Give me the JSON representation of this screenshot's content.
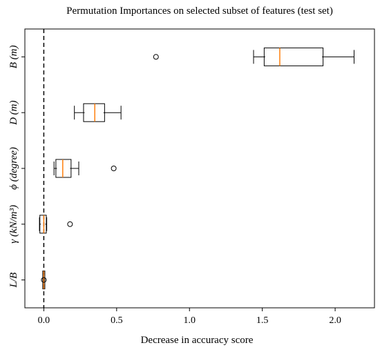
{
  "chart_data": {
    "type": "boxplot",
    "orientation": "horizontal",
    "title": "Permutation Importances on selected subset of features (test set)",
    "xlabel": "Decrease in accuracy score",
    "ylabel": "",
    "xlim": [
      -0.13,
      2.27
    ],
    "xticks": [
      0.0,
      0.5,
      1.0,
      1.5,
      2.0
    ],
    "xtick_labels": [
      "0.0",
      "0.5",
      "1.0",
      "1.5",
      "2.0"
    ],
    "reference_line": {
      "x": 0.0,
      "style": "dashed"
    },
    "grid": false,
    "colors": {
      "box": "#000000",
      "median": "#ff7f0e",
      "reference": "#000000"
    },
    "categories_top_to_bottom": [
      "B (m)",
      "D (m)",
      "ϕ (degree)",
      "γ (kN/m³)",
      "L/B"
    ],
    "boxes": [
      {
        "label": "B (m)",
        "whisker_low": 1.44,
        "q1": 1.52,
        "median": 1.62,
        "q3": 1.91,
        "whisker_high": 2.13,
        "outliers": [
          0.77
        ]
      },
      {
        "label": "D (m)",
        "whisker_low": 0.21,
        "q1": 0.28,
        "median": 0.35,
        "q3": 0.41,
        "whisker_high": 0.53,
        "outliers": []
      },
      {
        "label": "ϕ (degree)",
        "whisker_low": 0.07,
        "q1": 0.09,
        "median": 0.13,
        "q3": 0.18,
        "whisker_high": 0.24,
        "outliers": [
          0.48
        ]
      },
      {
        "label": "γ (kN/m³)",
        "whisker_low": -0.03,
        "q1": -0.02,
        "median": 0.0,
        "q3": 0.01,
        "whisker_high": 0.02,
        "outliers": [
          0.18
        ]
      },
      {
        "label": "L/B",
        "whisker_low": 0.0,
        "q1": 0.0,
        "median": 0.0,
        "q3": 0.0,
        "whisker_high": 0.0,
        "outliers": [
          0.0
        ]
      }
    ]
  }
}
